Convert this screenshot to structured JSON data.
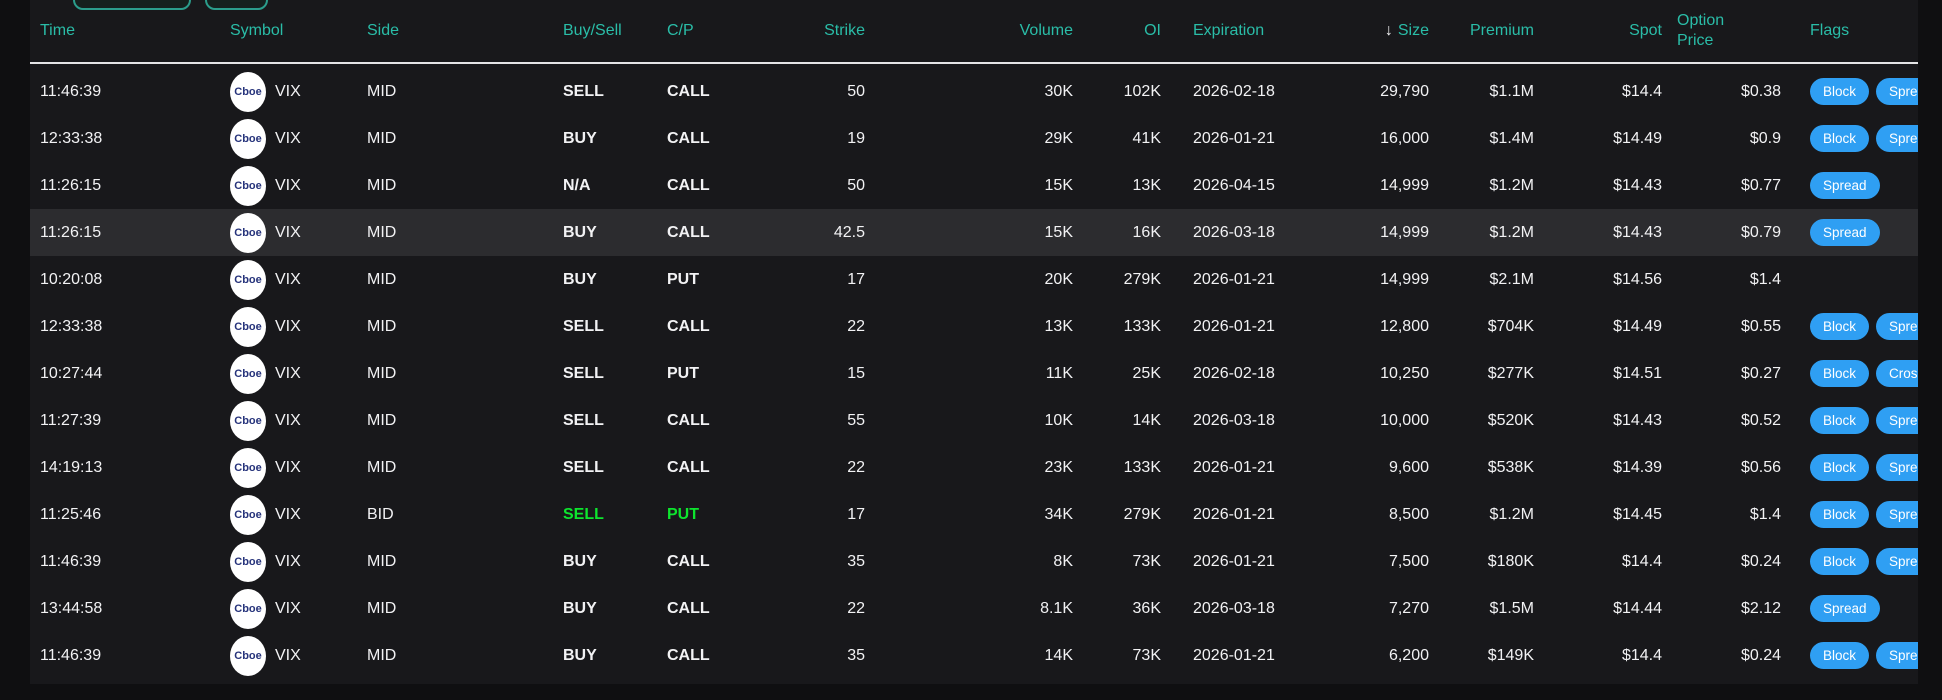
{
  "colors": {
    "header_accent": "#2abda8",
    "badge_blue": "#2f9ff3",
    "buy_side_green": "#0de52e",
    "row_highlight": "#2c2c2f"
  },
  "toolbar": {
    "buttons": [
      {
        "name": "toolbar-button-1"
      },
      {
        "name": "toolbar-button-2"
      }
    ]
  },
  "table": {
    "symbol_logo_text": "Cboe",
    "sort_icon": "↓",
    "columns": [
      {
        "key": "time",
        "label": "Time",
        "align": "left"
      },
      {
        "key": "symbol",
        "label": "Symbol",
        "align": "left"
      },
      {
        "key": "side",
        "label": "Side",
        "align": "left"
      },
      {
        "key": "buy_sell",
        "label": "Buy/Sell",
        "align": "left"
      },
      {
        "key": "cp",
        "label": "C/P",
        "align": "left"
      },
      {
        "key": "strike",
        "label": "Strike",
        "align": "right"
      },
      {
        "key": "volume",
        "label": "Volume",
        "align": "right"
      },
      {
        "key": "oi",
        "label": "OI",
        "align": "right"
      },
      {
        "key": "expiration",
        "label": "Expiration",
        "align": "left"
      },
      {
        "key": "size",
        "label": "Size",
        "align": "right",
        "sorted": "desc"
      },
      {
        "key": "premium",
        "label": "Premium",
        "align": "right"
      },
      {
        "key": "spot",
        "label": "Spot",
        "align": "right"
      },
      {
        "key": "option_price",
        "label": "Option Price",
        "align": "right"
      },
      {
        "key": "flags",
        "label": "Flags",
        "align": "left"
      }
    ],
    "rows": [
      {
        "time": "11:46:39",
        "symbol": "VIX",
        "side": "MID",
        "buy_sell": "SELL",
        "cp": "CALL",
        "strike": "50",
        "volume": "30K",
        "oi": "102K",
        "expiration": "2026-02-18",
        "size": "29,790",
        "premium": "$1.1M",
        "spot": "$14.4",
        "option_price": "$0.38",
        "flags": [
          "Block",
          "Spread"
        ],
        "highlighted": false,
        "accent": ""
      },
      {
        "time": "12:33:38",
        "symbol": "VIX",
        "side": "MID",
        "buy_sell": "BUY",
        "cp": "CALL",
        "strike": "19",
        "volume": "29K",
        "oi": "41K",
        "expiration": "2026-01-21",
        "size": "16,000",
        "premium": "$1.4M",
        "spot": "$14.49",
        "option_price": "$0.9",
        "flags": [
          "Block",
          "Spread"
        ],
        "highlighted": false,
        "accent": ""
      },
      {
        "time": "11:26:15",
        "symbol": "VIX",
        "side": "MID",
        "buy_sell": "N/A",
        "cp": "CALL",
        "strike": "50",
        "volume": "15K",
        "oi": "13K",
        "expiration": "2026-04-15",
        "size": "14,999",
        "premium": "$1.2M",
        "spot": "$14.43",
        "option_price": "$0.77",
        "flags": [
          "Spread"
        ],
        "highlighted": false,
        "accent": ""
      },
      {
        "time": "11:26:15",
        "symbol": "VIX",
        "side": "MID",
        "buy_sell": "BUY",
        "cp": "CALL",
        "strike": "42.5",
        "volume": "15K",
        "oi": "16K",
        "expiration": "2026-03-18",
        "size": "14,999",
        "premium": "$1.2M",
        "spot": "$14.43",
        "option_price": "$0.79",
        "flags": [
          "Spread"
        ],
        "highlighted": true,
        "accent": ""
      },
      {
        "time": "10:20:08",
        "symbol": "VIX",
        "side": "MID",
        "buy_sell": "BUY",
        "cp": "PUT",
        "strike": "17",
        "volume": "20K",
        "oi": "279K",
        "expiration": "2026-01-21",
        "size": "14,999",
        "premium": "$2.1M",
        "spot": "$14.56",
        "option_price": "$1.4",
        "flags": [],
        "highlighted": false,
        "accent": ""
      },
      {
        "time": "12:33:38",
        "symbol": "VIX",
        "side": "MID",
        "buy_sell": "SELL",
        "cp": "CALL",
        "strike": "22",
        "volume": "13K",
        "oi": "133K",
        "expiration": "2026-01-21",
        "size": "12,800",
        "premium": "$704K",
        "spot": "$14.49",
        "option_price": "$0.55",
        "flags": [
          "Block",
          "Spread"
        ],
        "highlighted": false,
        "accent": ""
      },
      {
        "time": "10:27:44",
        "symbol": "VIX",
        "side": "MID",
        "buy_sell": "SELL",
        "cp": "PUT",
        "strike": "15",
        "volume": "11K",
        "oi": "25K",
        "expiration": "2026-02-18",
        "size": "10,250",
        "premium": "$277K",
        "spot": "$14.51",
        "option_price": "$0.27",
        "flags": [
          "Block",
          "Cross"
        ],
        "highlighted": false,
        "accent": ""
      },
      {
        "time": "11:27:39",
        "symbol": "VIX",
        "side": "MID",
        "buy_sell": "SELL",
        "cp": "CALL",
        "strike": "55",
        "volume": "10K",
        "oi": "14K",
        "expiration": "2026-03-18",
        "size": "10,000",
        "premium": "$520K",
        "spot": "$14.43",
        "option_price": "$0.52",
        "flags": [
          "Block",
          "Spread"
        ],
        "highlighted": false,
        "accent": ""
      },
      {
        "time": "14:19:13",
        "symbol": "VIX",
        "side": "MID",
        "buy_sell": "SELL",
        "cp": "CALL",
        "strike": "22",
        "volume": "23K",
        "oi": "133K",
        "expiration": "2026-01-21",
        "size": "9,600",
        "premium": "$538K",
        "spot": "$14.39",
        "option_price": "$0.56",
        "flags": [
          "Block",
          "Spread"
        ],
        "highlighted": false,
        "accent": ""
      },
      {
        "time": "11:25:46",
        "symbol": "VIX",
        "side": "BID",
        "buy_sell": "SELL",
        "cp": "PUT",
        "strike": "17",
        "volume": "34K",
        "oi": "279K",
        "expiration": "2026-01-21",
        "size": "8,500",
        "premium": "$1.2M",
        "spot": "$14.45",
        "option_price": "$1.4",
        "flags": [
          "Block",
          "Spread"
        ],
        "highlighted": false,
        "accent": "green"
      },
      {
        "time": "11:46:39",
        "symbol": "VIX",
        "side": "MID",
        "buy_sell": "BUY",
        "cp": "CALL",
        "strike": "35",
        "volume": "8K",
        "oi": "73K",
        "expiration": "2026-01-21",
        "size": "7,500",
        "premium": "$180K",
        "spot": "$14.4",
        "option_price": "$0.24",
        "flags": [
          "Block",
          "Spread"
        ],
        "highlighted": false,
        "accent": ""
      },
      {
        "time": "13:44:58",
        "symbol": "VIX",
        "side": "MID",
        "buy_sell": "BUY",
        "cp": "CALL",
        "strike": "22",
        "volume": "8.1K",
        "oi": "36K",
        "expiration": "2026-03-18",
        "size": "7,270",
        "premium": "$1.5M",
        "spot": "$14.44",
        "option_price": "$2.12",
        "flags": [
          "Spread"
        ],
        "highlighted": false,
        "accent": ""
      },
      {
        "time": "11:46:39",
        "symbol": "VIX",
        "side": "MID",
        "buy_sell": "BUY",
        "cp": "CALL",
        "strike": "35",
        "volume": "14K",
        "oi": "73K",
        "expiration": "2026-01-21",
        "size": "6,200",
        "premium": "$149K",
        "spot": "$14.4",
        "option_price": "$0.24",
        "flags": [
          "Block",
          "Spread"
        ],
        "highlighted": false,
        "accent": ""
      }
    ]
  }
}
